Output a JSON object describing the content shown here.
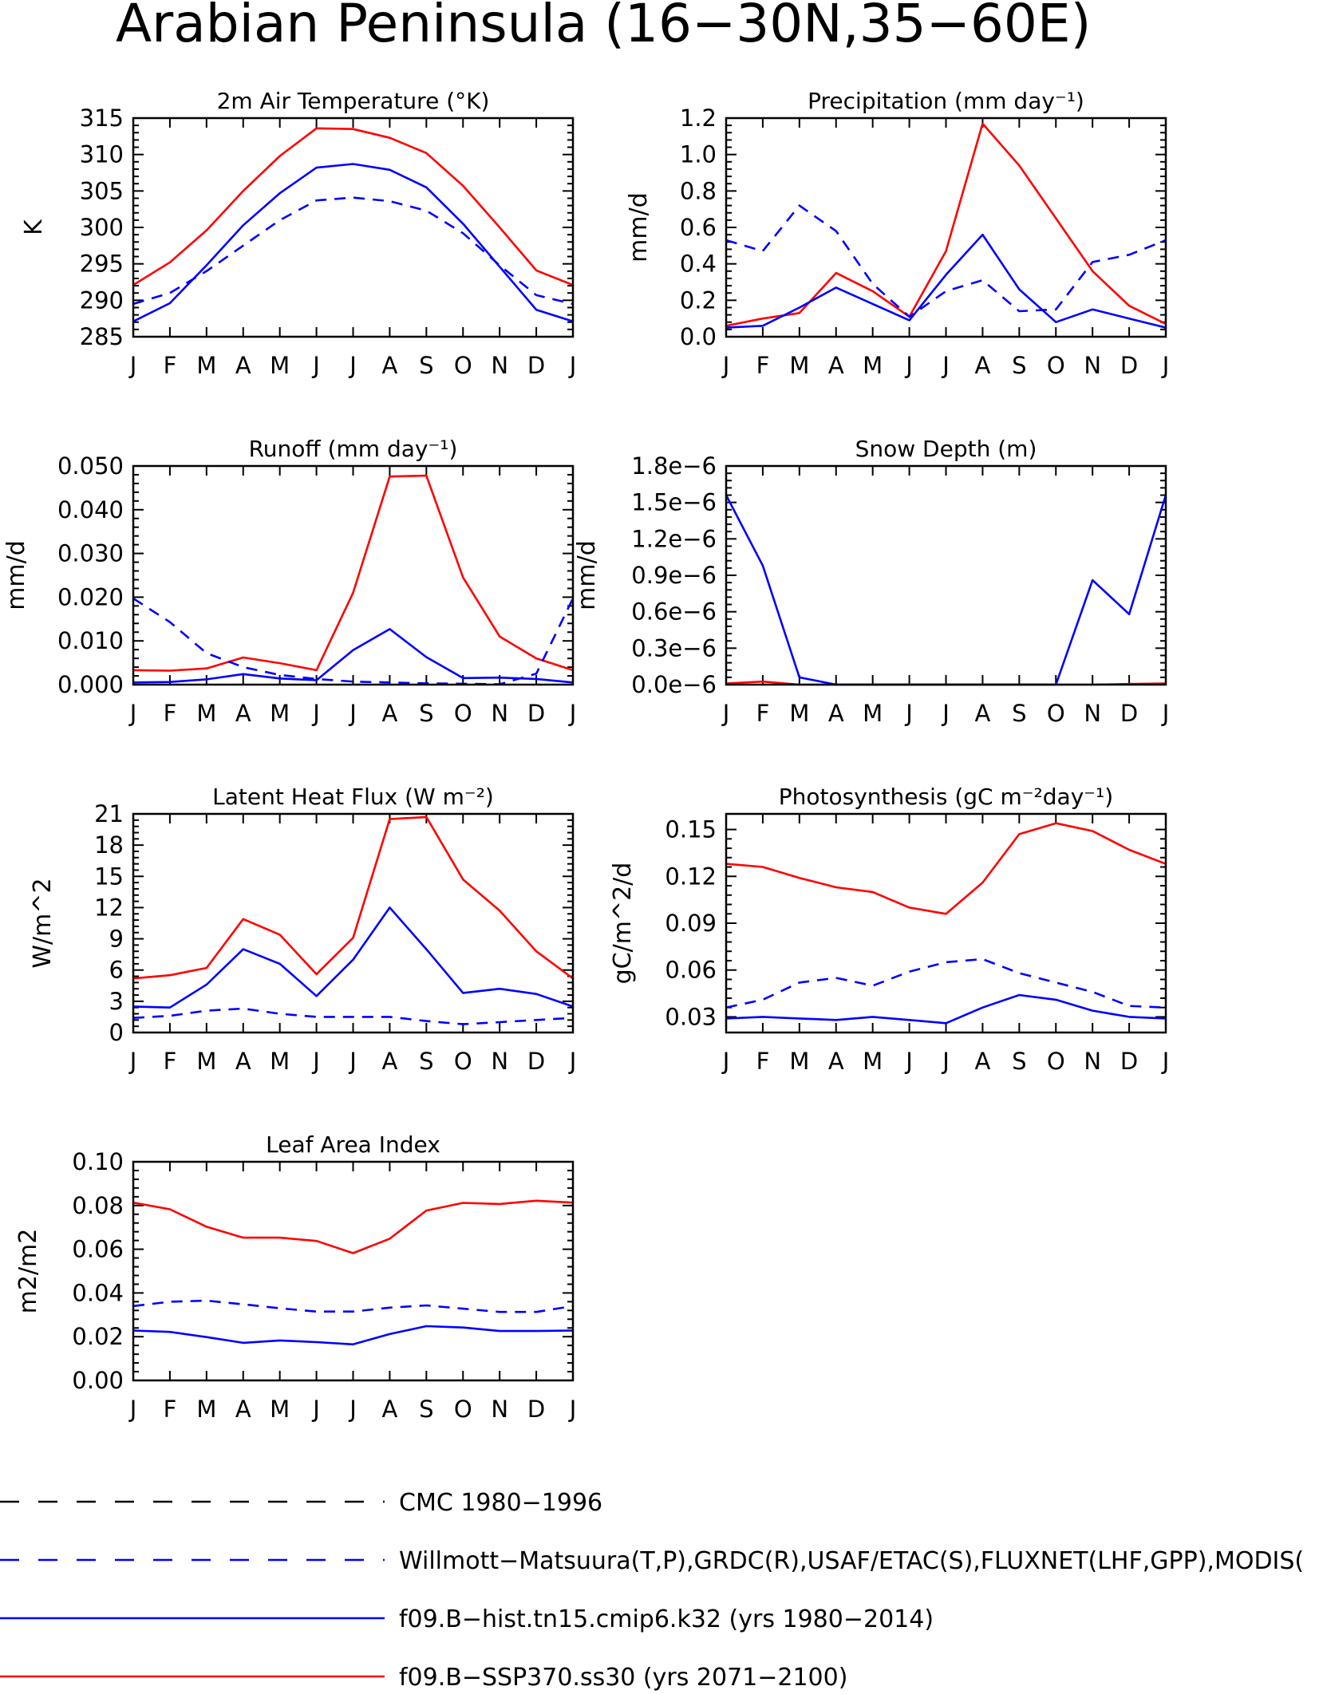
{
  "title": "Arabian Peninsula (16−30N,35−60E)",
  "colors": {
    "red": "#ff0000",
    "blue": "#0000ff",
    "black": "#000000"
  },
  "months": [
    "J",
    "F",
    "M",
    "A",
    "M",
    "J",
    "J",
    "A",
    "S",
    "O",
    "N",
    "D",
    "J"
  ],
  "legend": [
    {
      "label": "CMC 1980−1996",
      "color": "#000000",
      "dash": "dashed"
    },
    {
      "label": "Willmott−Matsuura(T,P),GRDC(R),USAF/ETAC(S),FLUXNET(LHF,GPP),MODIS(",
      "color": "#0000ff",
      "dash": "dashed"
    },
    {
      "label": "f09.B−hist.tn15.cmip6.k32 (yrs 1980−2014)",
      "color": "#0000ff",
      "dash": "solid"
    },
    {
      "label": "f09.B−SSP370.ss30 (yrs 2071−2100)",
      "color": "#ff0000",
      "dash": "solid"
    }
  ],
  "chart_data": [
    {
      "type": "line",
      "title": "2m Air Temperature (°K)",
      "ylabel": "K",
      "ylim": [
        285,
        315
      ],
      "yticks": [
        "285",
        "290",
        "295",
        "300",
        "305",
        "310",
        "315"
      ],
      "x": [
        "J",
        "F",
        "M",
        "A",
        "M",
        "J",
        "J",
        "A",
        "S",
        "O",
        "N",
        "D",
        "J"
      ],
      "series": [
        {
          "color": "#ff0000",
          "dash": "solid",
          "values": [
            292.1,
            295.2,
            299.6,
            305.0,
            309.8,
            313.6,
            313.5,
            312.3,
            310.2,
            305.7,
            300.0,
            294.1,
            292.1
          ]
        },
        {
          "color": "#0000ff",
          "dash": "solid",
          "values": [
            287.1,
            289.6,
            294.8,
            300.3,
            304.7,
            308.2,
            308.7,
            307.9,
            305.5,
            300.5,
            294.6,
            288.7,
            287.1
          ]
        },
        {
          "color": "#0000ff",
          "dash": "dashed",
          "values": [
            289.5,
            291.0,
            294.0,
            297.5,
            301.0,
            303.7,
            304.1,
            303.6,
            302.3,
            299.2,
            294.8,
            290.7,
            289.5
          ]
        }
      ]
    },
    {
      "type": "line",
      "title": "Precipitation (mm day⁻¹)",
      "ylabel": "mm/d",
      "ylim": [
        0,
        1.2
      ],
      "yticks": [
        "0.0",
        "0.2",
        "0.4",
        "0.6",
        "0.8",
        "1.0",
        "1.2"
      ],
      "x": [
        "J",
        "F",
        "M",
        "A",
        "M",
        "J",
        "J",
        "A",
        "S",
        "O",
        "N",
        "D",
        "J"
      ],
      "series": [
        {
          "color": "#ff0000",
          "dash": "solid",
          "values": [
            0.06,
            0.1,
            0.13,
            0.35,
            0.25,
            0.11,
            0.47,
            1.17,
            0.94,
            0.65,
            0.36,
            0.17,
            0.07
          ]
        },
        {
          "color": "#0000ff",
          "dash": "solid",
          "values": [
            0.05,
            0.06,
            0.16,
            0.27,
            0.18,
            0.09,
            0.34,
            0.56,
            0.26,
            0.08,
            0.15,
            0.1,
            0.05
          ]
        },
        {
          "color": "#0000ff",
          "dash": "dashed",
          "values": [
            0.53,
            0.47,
            0.72,
            0.58,
            0.29,
            0.11,
            0.25,
            0.31,
            0.14,
            0.15,
            0.41,
            0.45,
            0.53
          ]
        }
      ]
    },
    {
      "type": "line",
      "title": "Runoff (mm day⁻¹)",
      "ylabel": "mm/d",
      "ylim": [
        0,
        0.05
      ],
      "yticks": [
        "0.000",
        "0.010",
        "0.020",
        "0.030",
        "0.040",
        "0.050"
      ],
      "x": [
        "J",
        "F",
        "M",
        "A",
        "M",
        "J",
        "J",
        "A",
        "S",
        "O",
        "N",
        "D",
        "J"
      ],
      "series": [
        {
          "color": "#ff0000",
          "dash": "solid",
          "values": [
            0.0033,
            0.0032,
            0.0037,
            0.0062,
            0.0049,
            0.0033,
            0.021,
            0.0476,
            0.0478,
            0.0245,
            0.011,
            0.006,
            0.0033
          ]
        },
        {
          "color": "#0000ff",
          "dash": "solid",
          "values": [
            0.0005,
            0.0006,
            0.0012,
            0.0024,
            0.0014,
            0.001,
            0.0079,
            0.0127,
            0.0063,
            0.0015,
            0.0016,
            0.0013,
            0.0005
          ]
        },
        {
          "color": "#0000ff",
          "dash": "dashed",
          "values": [
            0.0197,
            0.0143,
            0.0072,
            0.004,
            0.0022,
            0.0013,
            0.0007,
            0.0005,
            0.0003,
            0.0002,
            0.0001,
            0.0025,
            0.0197
          ]
        }
      ]
    },
    {
      "type": "line",
      "title": "Snow Depth (m)",
      "ylabel": "mm/d",
      "ylim": [
        0,
        1.8e-06
      ],
      "yticks": [
        "0.0e−6",
        "0.3e−6",
        "0.6e−6",
        "0.9e−6",
        "1.2e−6",
        "1.5e−6",
        "1.8e−6"
      ],
      "x": [
        "J",
        "F",
        "M",
        "A",
        "M",
        "J",
        "J",
        "A",
        "S",
        "O",
        "N",
        "D",
        "J"
      ],
      "series": [
        {
          "color": "#ff0000",
          "dash": "solid",
          "values": [
            1e-08,
            2.5e-08,
            0,
            0,
            0,
            0,
            0,
            0,
            0,
            0,
            0,
            5e-09,
            1e-08
          ]
        },
        {
          "color": "#0000ff",
          "dash": "solid",
          "values": [
            1.56e-06,
            9.8e-07,
            6e-08,
            0,
            0,
            0,
            0,
            0,
            0,
            0,
            8.6e-07,
            5.8e-07,
            1.56e-06
          ]
        }
      ]
    },
    {
      "type": "line",
      "title": "Latent Heat Flux (W m⁻²)",
      "ylabel": "W/m^2",
      "ylim": [
        0,
        21
      ],
      "yticks": [
        "0",
        "3",
        "6",
        "9",
        "12",
        "15",
        "18",
        "21"
      ],
      "x": [
        "J",
        "F",
        "M",
        "A",
        "M",
        "J",
        "J",
        "A",
        "S",
        "O",
        "N",
        "D",
        "J"
      ],
      "series": [
        {
          "color": "#ff0000",
          "dash": "solid",
          "values": [
            5.2,
            5.5,
            6.2,
            10.9,
            9.4,
            5.6,
            9.1,
            20.5,
            20.7,
            14.7,
            11.7,
            7.8,
            5.2
          ]
        },
        {
          "color": "#0000ff",
          "dash": "solid",
          "values": [
            2.5,
            2.4,
            4.6,
            8.0,
            6.6,
            3.5,
            7.0,
            12.0,
            8.0,
            3.8,
            4.2,
            3.7,
            2.5
          ]
        },
        {
          "color": "#0000ff",
          "dash": "dashed",
          "values": [
            1.4,
            1.6,
            2.1,
            2.3,
            1.8,
            1.5,
            1.5,
            1.5,
            1.1,
            0.8,
            1.0,
            1.2,
            1.4
          ]
        }
      ]
    },
    {
      "type": "line",
      "title": "Photosynthesis (gC m⁻²day⁻¹)",
      "ylabel": "gC/m^2/d",
      "ylim": [
        0.02,
        0.16
      ],
      "yticks": [
        "0.03",
        "0.06",
        "0.09",
        "0.12",
        "0.15"
      ],
      "ytick_values": [
        0.03,
        0.06,
        0.09,
        0.12,
        0.15
      ],
      "x": [
        "J",
        "F",
        "M",
        "A",
        "M",
        "J",
        "J",
        "A",
        "S",
        "O",
        "N",
        "D",
        "J"
      ],
      "series": [
        {
          "color": "#ff0000",
          "dash": "solid",
          "values": [
            0.128,
            0.126,
            0.119,
            0.113,
            0.11,
            0.1,
            0.096,
            0.116,
            0.147,
            0.154,
            0.149,
            0.137,
            0.128
          ]
        },
        {
          "color": "#0000ff",
          "dash": "solid",
          "values": [
            0.029,
            0.03,
            0.029,
            0.028,
            0.03,
            0.028,
            0.026,
            0.036,
            0.044,
            0.041,
            0.034,
            0.03,
            0.029
          ]
        },
        {
          "color": "#0000ff",
          "dash": "dashed",
          "values": [
            0.036,
            0.041,
            0.052,
            0.055,
            0.05,
            0.059,
            0.065,
            0.067,
            0.058,
            0.052,
            0.046,
            0.037,
            0.036
          ]
        }
      ]
    },
    {
      "type": "line",
      "title": "Leaf Area Index",
      "ylabel": "m2/m2",
      "ylim": [
        0,
        0.1
      ],
      "yticks": [
        "0.00",
        "0.02",
        "0.04",
        "0.06",
        "0.08",
        "0.10"
      ],
      "x": [
        "J",
        "F",
        "M",
        "A",
        "M",
        "J",
        "J",
        "A",
        "S",
        "O",
        "N",
        "D",
        "J"
      ],
      "series": [
        {
          "color": "#ff0000",
          "dash": "solid",
          "values": [
            0.0813,
            0.0783,
            0.0703,
            0.0653,
            0.0653,
            0.0638,
            0.0582,
            0.0648,
            0.0777,
            0.0812,
            0.0807,
            0.0822,
            0.0813
          ]
        },
        {
          "color": "#0000ff",
          "dash": "solid",
          "values": [
            0.0228,
            0.0222,
            0.0198,
            0.0172,
            0.0183,
            0.0175,
            0.0165,
            0.0212,
            0.0248,
            0.0242,
            0.0226,
            0.0226,
            0.0228
          ]
        },
        {
          "color": "#0000ff",
          "dash": "dashed",
          "values": [
            0.034,
            0.036,
            0.0365,
            0.0348,
            0.033,
            0.0315,
            0.0315,
            0.0333,
            0.0343,
            0.0328,
            0.0313,
            0.0313,
            0.034
          ]
        }
      ]
    }
  ]
}
